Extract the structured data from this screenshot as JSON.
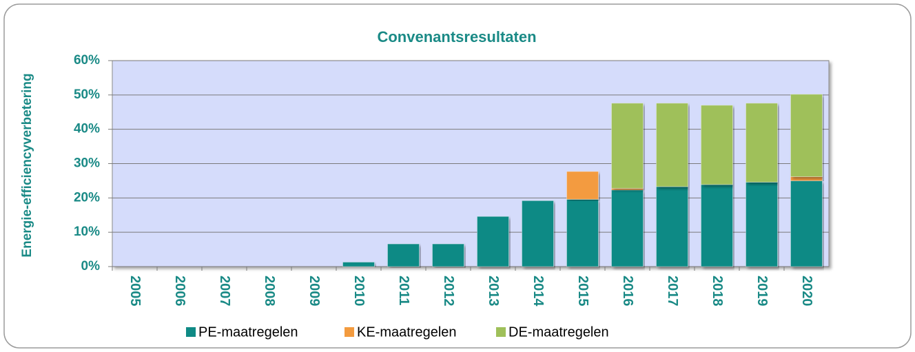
{
  "chart_data": {
    "type": "stacked_bar",
    "title": "Convenantsresultaten",
    "y_label": "Energie-efficiencyverbetering",
    "categories": [
      "2005",
      "2006",
      "2007",
      "2008",
      "2009",
      "2010",
      "2011",
      "2012",
      "2013",
      "2014",
      "2015",
      "2016",
      "2017",
      "2018",
      "2019",
      "2020"
    ],
    "series": [
      {
        "name": "PE-maatregelen",
        "color": "#0f8a85",
        "values": [
          0,
          0,
          0,
          0,
          0,
          1.3,
          6.6,
          6.6,
          14.6,
          19.2,
          19.6,
          22.3,
          23.3,
          23.9,
          24.6,
          25.0
        ]
      },
      {
        "name": "KE-maatregelen",
        "color": "#f39b3f",
        "values": [
          0,
          0,
          0,
          0,
          0,
          0,
          0,
          0,
          0,
          0,
          8.1,
          0.5,
          0,
          0,
          0,
          1.2
        ]
      },
      {
        "name": "DE-maatregelen",
        "color": "#9fc05a",
        "values": [
          0,
          0,
          0,
          0,
          0,
          0,
          0,
          0,
          0,
          0,
          0,
          24.8,
          24.3,
          23.1,
          23.0,
          24.0
        ]
      }
    ],
    "ylim": [
      0,
      60
    ],
    "yticks": [
      {
        "value": 0,
        "label": "0%"
      },
      {
        "value": 10,
        "label": "10%"
      },
      {
        "value": 20,
        "label": "20%"
      },
      {
        "value": 30,
        "label": "30%"
      },
      {
        "value": 40,
        "label": "40%"
      },
      {
        "value": 50,
        "label": "50%"
      },
      {
        "value": 60,
        "label": "60%"
      }
    ],
    "grid": true,
    "legend": "bottom"
  }
}
